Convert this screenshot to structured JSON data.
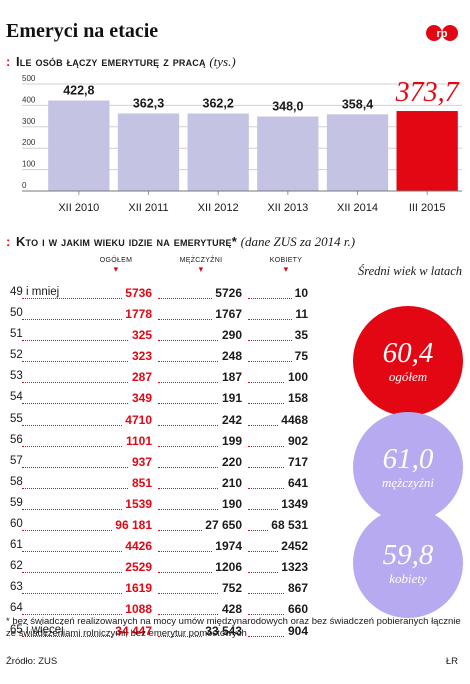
{
  "title": "Emeryci na etacie",
  "brand": {
    "red": "#e30613",
    "lavender": "#b8aaf0",
    "bar_gray": "#c5c3e3"
  },
  "section1": {
    "bullet": ":",
    "heading": "Ile osób łączy emeryturę z pracą",
    "note": "(tys.)"
  },
  "section2": {
    "bullet": ":",
    "heading": "Kto i w jakim wieku idzie na emeryturę*",
    "note": "(dane ZUS za 2014 r.)"
  },
  "chart_data": {
    "type": "bar",
    "categories": [
      "XII 2010",
      "XII 2011",
      "XII 2012",
      "XII 2013",
      "XII 2014",
      "III 2015"
    ],
    "values": [
      422.8,
      362.3,
      362.2,
      348.0,
      358.4,
      373.7
    ],
    "value_labels": [
      "422,8",
      "362,3",
      "362,2",
      "348,0",
      "358,4",
      "373,7"
    ],
    "highlight_index": 5,
    "ylim": [
      0,
      500
    ],
    "yticks": [
      0,
      100,
      200,
      300,
      400,
      500
    ],
    "grid": true
  },
  "table": {
    "columns": [
      "ogółem",
      "mężczyźni",
      "kobiety"
    ],
    "rows": [
      {
        "age": "49 i mniej",
        "all": "5736",
        "men": "5726",
        "women": "10"
      },
      {
        "age": "50",
        "all": "1778",
        "men": "1767",
        "women": "11"
      },
      {
        "age": "51",
        "all": "325",
        "men": "290",
        "women": "35"
      },
      {
        "age": "52",
        "all": "323",
        "men": "248",
        "women": "75"
      },
      {
        "age": "53",
        "all": "287",
        "men": "187",
        "women": "100"
      },
      {
        "age": "54",
        "all": "349",
        "men": "191",
        "women": "158"
      },
      {
        "age": "55",
        "all": "4710",
        "men": "242",
        "women": "4468"
      },
      {
        "age": "56",
        "all": "1101",
        "men": "199",
        "women": "902"
      },
      {
        "age": "57",
        "all": "937",
        "men": "220",
        "women": "717"
      },
      {
        "age": "58",
        "all": "851",
        "men": "210",
        "women": "641"
      },
      {
        "age": "59",
        "all": "1539",
        "men": "190",
        "women": "1349"
      },
      {
        "age": "60",
        "all": "96 181",
        "men": "27 650",
        "women": "68 531"
      },
      {
        "age": "61",
        "all": "4426",
        "men": "1974",
        "women": "2452"
      },
      {
        "age": "62",
        "all": "2529",
        "men": "1206",
        "women": "1323"
      },
      {
        "age": "63",
        "all": "1619",
        "men": "752",
        "women": "867"
      },
      {
        "age": "64",
        "all": "1088",
        "men": "428",
        "women": "660"
      },
      {
        "age": "65 i więcej",
        "all": "34 447",
        "men": "33 543",
        "women": "904"
      }
    ]
  },
  "average_age": {
    "label": "Średni wiek w latach",
    "total": {
      "value": "60,4",
      "label": "ogółem"
    },
    "men": {
      "value": "61,0",
      "label": "mężczyźni"
    },
    "women": {
      "value": "59,8",
      "label": "kobiety"
    }
  },
  "footnote": "* bez świadczeń realizowanych na mocy umów międzynarodowych oraz bez świadczeń pobieranych łącznie ze świadczeniami rolniczymi; bez emerytur pomostowych",
  "source": "Źródło: ZUS",
  "credit": "ŁR",
  "logo_text": "rp"
}
